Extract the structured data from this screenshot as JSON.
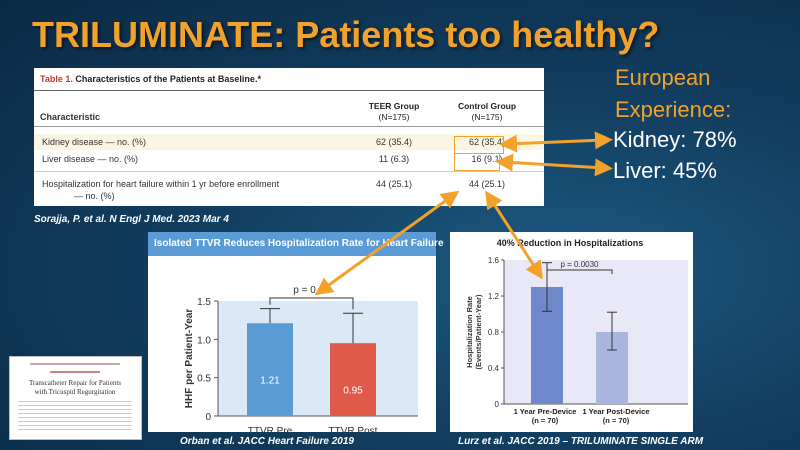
{
  "title": "TRILUMINATE: Patients too healthy?",
  "european": {
    "line1": "European",
    "line2": "Experience:",
    "kidney": "Kidney: 78%",
    "liver": "Liver: 45%"
  },
  "table": {
    "label": "Table 1.",
    "caption": "Characteristics of the Patients at Baseline.*",
    "col_characteristic": "Characteristic",
    "col_teer": "TEER Group",
    "col_teer_n": "(N=175)",
    "col_control": "Control Group",
    "col_control_n": "(N=175)",
    "rows": [
      {
        "label": "Kidney disease — no. (%)",
        "teer": "62 (35.4)",
        "control": "62 (35.4)"
      },
      {
        "label": "Liver disease — no. (%)",
        "teer": "11 (6.3)",
        "control": "16 (9.1)"
      },
      {
        "label": "Hospitalization for heart failure within 1 yr before enrollment",
        "label2": "— no. (%)",
        "teer": "44 (25.1)",
        "control": "44 (25.1)"
      }
    ]
  },
  "citations": {
    "sorajja": "Sorajja, P. et al. N Engl J Med. 2023 Mar 4",
    "orban": "Orban et al. JACC Heart Failure 2019",
    "lurz": "Lurz et al. JACC 2019 – TRILUMINATE SINGLE ARM"
  },
  "thumbnail": {
    "line1": "Transcatheter Repair for Patients",
    "line2": "with Tricuspid Regurgitation"
  },
  "chart_data": [
    {
      "type": "bar",
      "title": "Isolated TTVR Reduces Hospitalization Rate for Heart Failure",
      "ylabel": "HHF per Patient-Year",
      "categories": [
        "TTVR Pre",
        "TTVR Post"
      ],
      "values": [
        1.21,
        0.95
      ],
      "data_labels": [
        "1.21",
        "0.95"
      ],
      "error_upper": [
        1.4,
        1.34
      ],
      "error_lower": [
        null,
        null
      ],
      "ylim": [
        0,
        1.5
      ],
      "yticks": [
        "0",
        "0.5",
        "1.0",
        "1.5"
      ],
      "annotation": "p = 0.02",
      "colors": [
        "#5b9bd5",
        "#e05a4a"
      ],
      "background": "#dbe8f6"
    },
    {
      "type": "bar",
      "title": "40% Reduction in Hospitalizations",
      "ylabel": "Hospitalization Rate\n(Events/Patient-Year)",
      "categories": [
        "1 Year Pre-Device\n(n = 70)",
        "1 Year Post-Device\n(n = 70)"
      ],
      "values": [
        1.3,
        0.8
      ],
      "error_upper": [
        1.57,
        1.02
      ],
      "error_lower": [
        1.03,
        0.6
      ],
      "ylim": [
        0,
        1.6
      ],
      "yticks": [
        "0",
        "0.4",
        "0.8",
        "1.2",
        "1.6"
      ],
      "annotation": "p = 0.0030",
      "colors": [
        "#6f88c9",
        "#a9b6e0"
      ],
      "background": "#e8e8f6"
    }
  ]
}
